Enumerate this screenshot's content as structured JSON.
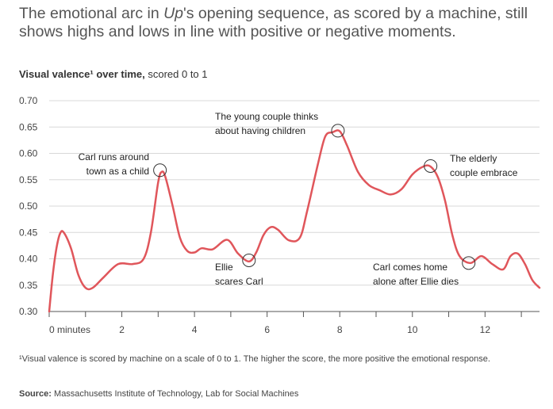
{
  "headline": {
    "part1": "The emotional arc in ",
    "italic": "Up",
    "part2": "'s opening sequence, as scored by a machine, still shows highs and lows in line with positive or negative moments."
  },
  "subtitle": {
    "bold": "Visual valence¹ over time,",
    "rest": " scored 0 to 1"
  },
  "footnote": "¹Visual valence is scored by machine on a scale of 0 to 1. The higher the score, the more positive the emotional response.",
  "source": {
    "label": "Source:",
    "text": " Massachusetts Institute of Technology, Lab for Social Machines"
  },
  "colors": {
    "line": "#e0565b",
    "grid": "#d8d8d8",
    "axis": "#555555"
  },
  "chart_data": {
    "type": "line",
    "xlabel": "",
    "ylabel": "",
    "xlim": [
      0,
      13.5
    ],
    "ylim": [
      0.3,
      0.7
    ],
    "y_ticks": [
      0.3,
      0.35,
      0.4,
      0.45,
      0.5,
      0.55,
      0.6,
      0.65,
      0.7
    ],
    "y_tick_labels": [
      "0.30",
      "0.35",
      "0.40",
      "0.45",
      "0.50",
      "0.55",
      "0.60",
      "0.65",
      "0.70"
    ],
    "x_ticks": [
      0,
      1,
      2,
      3,
      4,
      5,
      6,
      7,
      8,
      9,
      10,
      11,
      12,
      13
    ],
    "x_tick_labels": [
      {
        "x": 0,
        "label": "0 minutes"
      },
      {
        "x": 2,
        "label": "2"
      },
      {
        "x": 4,
        "label": "4"
      },
      {
        "x": 6,
        "label": "6"
      },
      {
        "x": 8,
        "label": "8"
      },
      {
        "x": 10,
        "label": "10"
      },
      {
        "x": 12,
        "label": "12"
      }
    ],
    "grid": "horizontal",
    "series": [
      {
        "x": [
          0,
          0.1,
          0.2,
          0.3,
          0.4,
          0.6,
          0.8,
          1.0,
          1.2,
          1.5,
          1.9,
          2.3,
          2.6,
          2.8,
          3.0,
          3.1,
          3.2,
          3.4,
          3.6,
          3.8,
          4.0,
          4.2,
          4.5,
          4.9,
          5.2,
          5.5,
          5.7,
          5.9,
          6.1,
          6.3,
          6.6,
          6.9,
          7.1,
          7.4,
          7.6,
          7.8,
          8.0,
          8.2,
          8.5,
          8.8,
          9.1,
          9.4,
          9.7,
          10.0,
          10.3,
          10.5,
          10.7,
          10.9,
          11.1,
          11.3,
          11.6,
          11.9,
          12.2,
          12.5,
          12.7,
          12.9,
          13.1,
          13.3,
          13.5
        ],
        "y": [
          0.3,
          0.37,
          0.42,
          0.448,
          0.45,
          0.42,
          0.37,
          0.345,
          0.345,
          0.365,
          0.39,
          0.39,
          0.4,
          0.45,
          0.545,
          0.565,
          0.555,
          0.5,
          0.44,
          0.415,
          0.412,
          0.42,
          0.418,
          0.436,
          0.41,
          0.395,
          0.412,
          0.445,
          0.46,
          0.455,
          0.435,
          0.44,
          0.49,
          0.58,
          0.632,
          0.64,
          0.642,
          0.615,
          0.565,
          0.54,
          0.53,
          0.522,
          0.532,
          0.56,
          0.575,
          0.575,
          0.555,
          0.51,
          0.445,
          0.405,
          0.392,
          0.405,
          0.39,
          0.38,
          0.405,
          0.41,
          0.39,
          0.36,
          0.345
        ]
      }
    ],
    "annotations": [
      {
        "x": 3.05,
        "y": 0.568,
        "lines": [
          "Carl runs around",
          "town as a child"
        ],
        "anchor": "end"
      },
      {
        "x": 5.5,
        "y": 0.397,
        "lines": [
          "Ellie",
          "scares Carl"
        ],
        "anchor": "start"
      },
      {
        "x": 7.95,
        "y": 0.643,
        "lines": [
          "The young couple thinks",
          "about having children"
        ],
        "anchor": "start"
      },
      {
        "x": 10.5,
        "y": 0.576,
        "lines": [
          "The elderly",
          "couple embrace"
        ],
        "anchor": "start"
      },
      {
        "x": 11.55,
        "y": 0.392,
        "lines": [
          "Carl comes home",
          "alone after Ellie dies"
        ],
        "anchor": "start"
      }
    ]
  }
}
